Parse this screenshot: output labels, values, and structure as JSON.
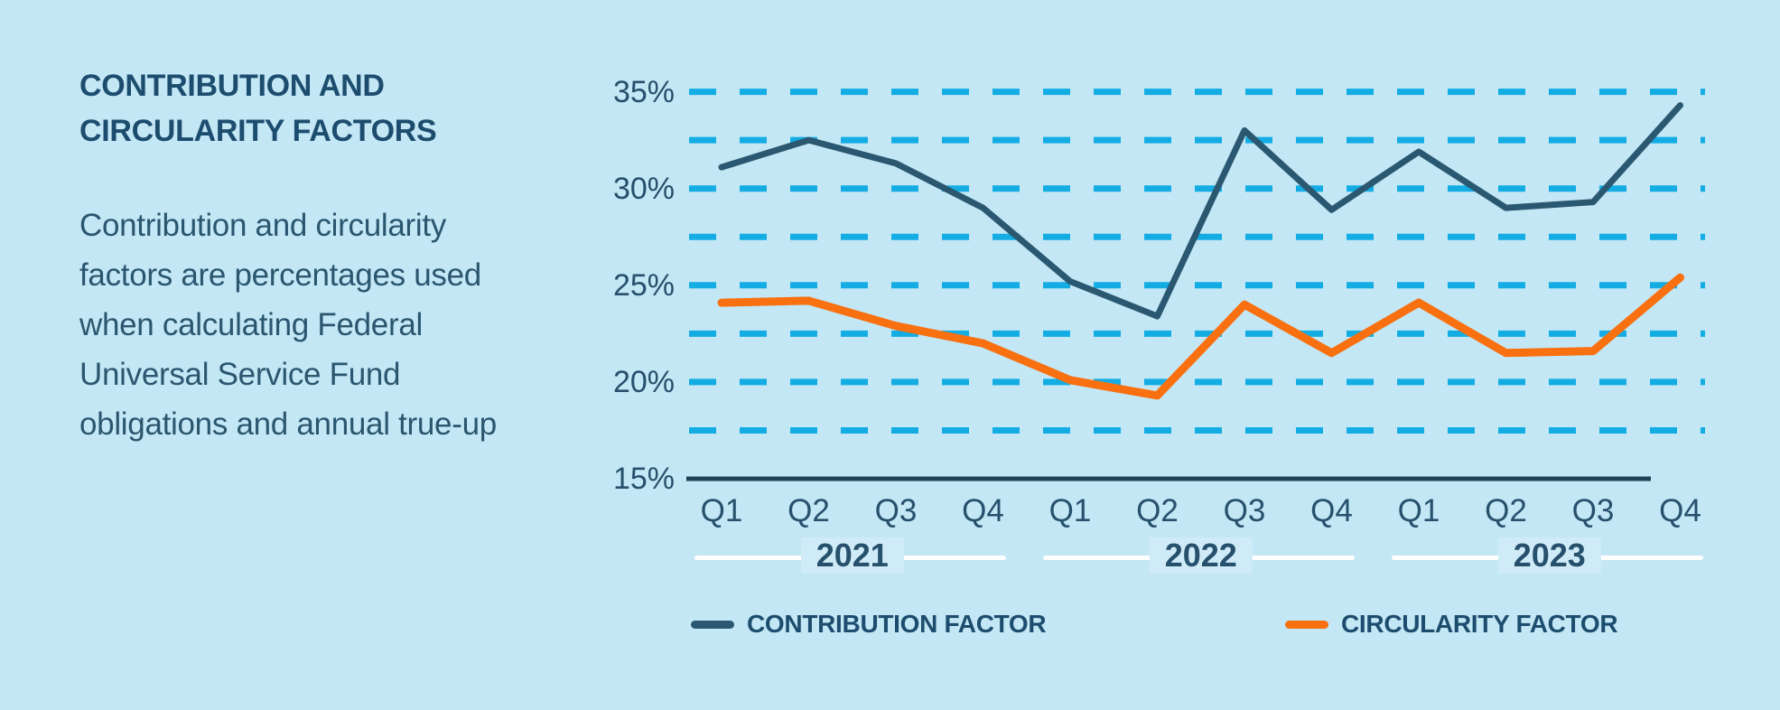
{
  "panel": {
    "title_line1": "CONTRIBUTION AND",
    "title_line2": "CIRCULARITY FACTORS",
    "body_lines": [
      "Contribution and circularity",
      "factors are percentages used",
      "when calculating Federal",
      "Universal Service Fund",
      "obligations and annual true-up"
    ]
  },
  "chart_data": {
    "type": "line",
    "title": "CONTRIBUTION AND CIRCULARITY FACTORS",
    "xlabel": "",
    "ylabel": "",
    "x_quarters": [
      "Q1",
      "Q2",
      "Q3",
      "Q4",
      "Q1",
      "Q2",
      "Q3",
      "Q4",
      "Q1",
      "Q2",
      "Q3",
      "Q4"
    ],
    "year_groups": [
      {
        "label": "2021",
        "first_quarter_index": 0,
        "last_quarter_index": 3
      },
      {
        "label": "2022",
        "first_quarter_index": 4,
        "last_quarter_index": 7
      },
      {
        "label": "2023",
        "first_quarter_index": 8,
        "last_quarter_index": 11
      }
    ],
    "series": [
      {
        "name": "CONTRIBUTION FACTOR",
        "color": "#2B5871",
        "values": [
          31.1,
          32.5,
          31.3,
          29.0,
          25.2,
          23.4,
          33.0,
          28.9,
          31.9,
          29.0,
          29.3,
          34.3
        ]
      },
      {
        "name": "CIRCULARITY FACTOR",
        "color": "#F97010",
        "values": [
          24.1,
          24.2,
          22.9,
          22.0,
          20.1,
          19.3,
          24.0,
          21.5,
          24.1,
          21.5,
          21.6,
          25.4
        ]
      }
    ],
    "y_tick_labels": [
      "35%",
      "30%",
      "25%",
      "20%",
      "15%"
    ],
    "y_tick_values": [
      35,
      30,
      25,
      20,
      15
    ],
    "ylim": [
      15,
      35
    ],
    "unit": "%",
    "gridline_values": [
      35,
      32.5,
      30,
      27.5,
      25,
      22.5,
      20,
      17.5
    ],
    "grid_on": true,
    "grid_color": "#13ADE4",
    "axis_color": "#1F4254",
    "legend_position": "bottom"
  },
  "legend": {
    "items": [
      {
        "label": "CONTRIBUTION FACTOR",
        "color": "#2B5871"
      },
      {
        "label": "CIRCULARITY FACTOR",
        "color": "#F97010"
      }
    ]
  },
  "colors": {
    "background": "#C3E7F5",
    "title_text": "#1D4D6E",
    "body_text": "#2A566F",
    "label_text": "#26506C",
    "year_chip_bg": "#CFEBF8",
    "year_line": "#FFFFFF"
  }
}
